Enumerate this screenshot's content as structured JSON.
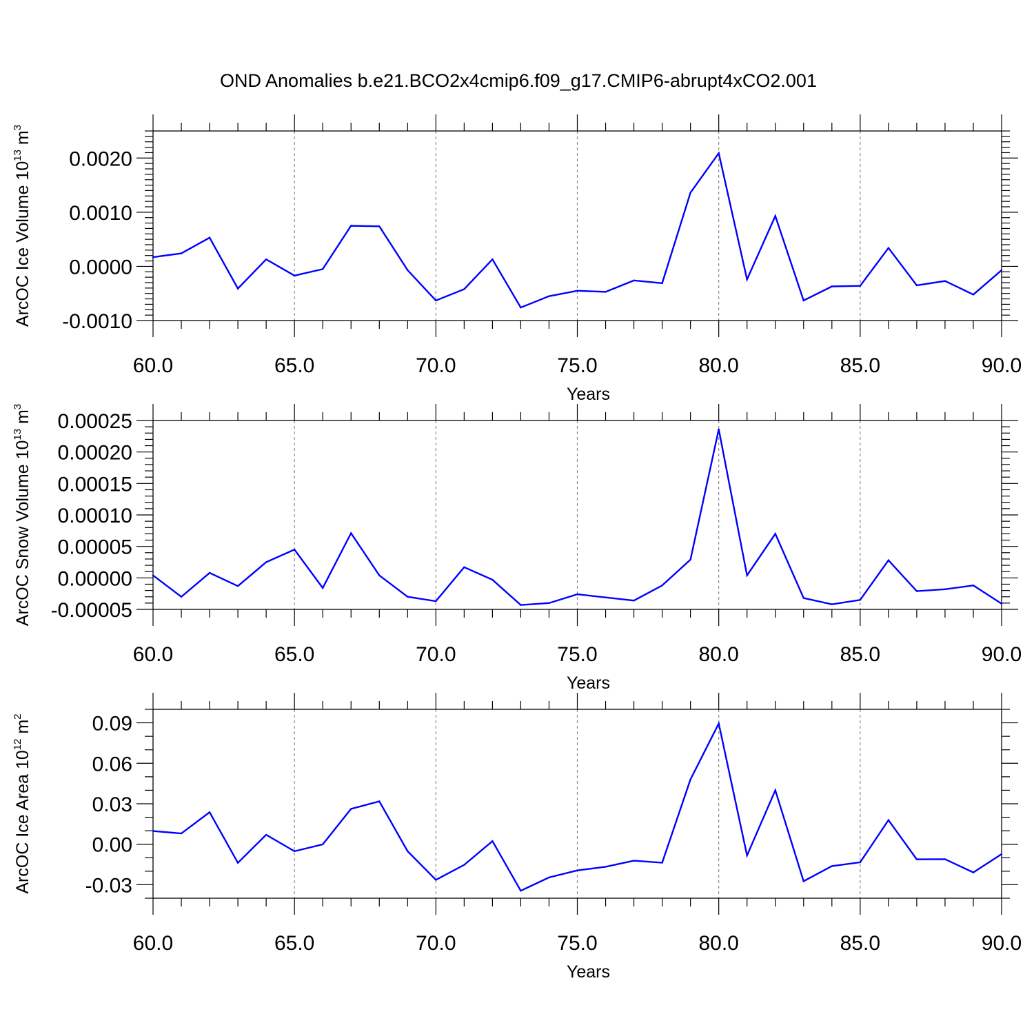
{
  "title": "OND Anomalies b.e21.BCO2x4cmip6.f09_g17.CMIP6-abrupt4xCO2.001",
  "line_color": "#0000ff",
  "chart_data": [
    {
      "type": "line",
      "name": "ice-volume",
      "xlabel": "Years",
      "ylabel": {
        "main": "ArcOC Ice Volume 10",
        "sup": "13",
        "unit": " m",
        "unit_sup": "3"
      },
      "xlim": [
        60,
        90
      ],
      "ylim": [
        -0.001,
        0.0025
      ],
      "x_ticks": [
        "60.0",
        "65.0",
        "70.0",
        "75.0",
        "80.0",
        "85.0",
        "90.0"
      ],
      "y_ticks": [
        {
          "value": -0.001,
          "label": "-0.0010"
        },
        {
          "value": 0.0,
          "label": "0.0000"
        },
        {
          "value": 0.001,
          "label": "0.0010"
        },
        {
          "value": 0.002,
          "label": "0.0020"
        }
      ],
      "y_minor_step": 0.0001,
      "grid_x": true,
      "x": [
        60,
        61,
        62,
        63,
        64,
        65,
        66,
        67,
        68,
        69,
        70,
        71,
        72,
        73,
        74,
        75,
        76,
        77,
        78,
        79,
        80,
        81,
        82,
        83,
        84,
        85,
        86,
        87,
        88,
        89,
        90
      ],
      "values": [
        0.00017,
        0.00024,
        0.00053,
        -0.00041,
        0.00013,
        -0.00017,
        -5e-05,
        0.00075,
        0.00074,
        -7e-05,
        -0.00063,
        -0.00042,
        0.00013,
        -0.00076,
        -0.00055,
        -0.00045,
        -0.00047,
        -0.00026,
        -0.00031,
        0.00136,
        0.00209,
        -0.00024,
        0.00093,
        -0.00063,
        -0.00037,
        -0.00036,
        0.00034,
        -0.00035,
        -0.00027,
        -0.00052,
        -7e-05
      ]
    },
    {
      "type": "line",
      "name": "snow-volume",
      "xlabel": "Years",
      "ylabel": {
        "main": "ArcOC Snow Volume 10",
        "sup": "13",
        "unit": " m",
        "unit_sup": "3"
      },
      "xlim": [
        60,
        90
      ],
      "ylim": [
        -5e-05,
        0.00025
      ],
      "x_ticks": [
        "60.0",
        "65.0",
        "70.0",
        "75.0",
        "80.0",
        "85.0",
        "90.0"
      ],
      "y_ticks": [
        {
          "value": -5e-05,
          "label": "-0.00005"
        },
        {
          "value": 0.0,
          "label": "0.00000"
        },
        {
          "value": 5e-05,
          "label": "0.00005"
        },
        {
          "value": 0.0001,
          "label": "0.00010"
        },
        {
          "value": 0.00015,
          "label": "0.00015"
        },
        {
          "value": 0.0002,
          "label": "0.00020"
        },
        {
          "value": 0.00025,
          "label": "0.00025"
        }
      ],
      "y_minor_step": 1e-05,
      "grid_x": true,
      "x": [
        60,
        61,
        62,
        63,
        64,
        65,
        66,
        67,
        68,
        69,
        70,
        71,
        72,
        73,
        74,
        75,
        76,
        77,
        78,
        79,
        80,
        81,
        82,
        83,
        84,
        85,
        86,
        87,
        88,
        89,
        90
      ],
      "values": [
        4e-06,
        -3e-05,
        8e-06,
        -1.3e-05,
        2.5e-05,
        4.5e-05,
        -1.6e-05,
        7.1e-05,
        4e-06,
        -3e-05,
        -3.7e-05,
        1.7e-05,
        -3e-06,
        -4.3e-05,
        -4e-05,
        -2.6e-05,
        -3.1e-05,
        -3.6e-05,
        -1.2e-05,
        2.9e-05,
        0.000236,
        4e-06,
        7e-05,
        -3.2e-05,
        -4.2e-05,
        -3.5e-05,
        2.8e-05,
        -2.1e-05,
        -1.8e-05,
        -1.2e-05,
        -4.1e-05
      ]
    },
    {
      "type": "line",
      "name": "ice-area",
      "xlabel": "Years",
      "ylabel": {
        "main": "ArcOC Ice Area 10",
        "sup": "12",
        "unit": " m",
        "unit_sup": "2"
      },
      "xlim": [
        60,
        90
      ],
      "ylim": [
        -0.04,
        0.1
      ],
      "x_ticks": [
        "60.0",
        "65.0",
        "70.0",
        "75.0",
        "80.0",
        "85.0",
        "90.0"
      ],
      "y_ticks": [
        {
          "value": -0.03,
          "label": "-0.03"
        },
        {
          "value": 0.0,
          "label": "0.00"
        },
        {
          "value": 0.03,
          "label": "0.03"
        },
        {
          "value": 0.06,
          "label": "0.06"
        },
        {
          "value": 0.09,
          "label": "0.09"
        }
      ],
      "y_minor_step": 0.01,
      "grid_x": true,
      "x": [
        60,
        61,
        62,
        63,
        64,
        65,
        66,
        67,
        68,
        69,
        70,
        71,
        72,
        73,
        74,
        75,
        76,
        77,
        78,
        79,
        80,
        81,
        82,
        83,
        84,
        85,
        86,
        87,
        88,
        89,
        90
      ],
      "values": [
        0.0098,
        0.008,
        0.0237,
        -0.0138,
        0.007,
        -0.0052,
        -0.0001,
        0.0262,
        0.0318,
        -0.0052,
        -0.0264,
        -0.0153,
        0.0023,
        -0.0345,
        -0.0246,
        -0.0194,
        -0.0167,
        -0.0122,
        -0.0137,
        0.048,
        0.0895,
        -0.0083,
        0.04,
        -0.0274,
        -0.0162,
        -0.0134,
        0.0179,
        -0.0112,
        -0.0111,
        -0.0209,
        -0.0073
      ]
    }
  ]
}
